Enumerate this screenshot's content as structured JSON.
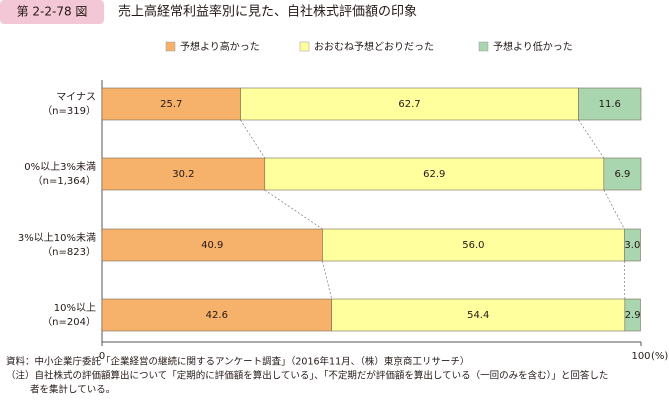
{
  "header": {
    "badge": "第 2-2-78 図",
    "title": "売上高経常利益率別に見た、自社株式評価額の印象"
  },
  "chart_data": {
    "type": "stacked-bar-horizontal",
    "categories": [
      "マイナス",
      "0%以上3%未満",
      "3%以上10%未満",
      "10%以上"
    ],
    "category_n": [
      "（n=319）",
      "（n=1,364）",
      "（n=823）",
      "（n=204）"
    ],
    "series": [
      {
        "name": "予想より高かった",
        "color": "#f6b26b",
        "values": [
          25.7,
          30.2,
          40.9,
          42.6
        ],
        "value_labels": [
          "25.7",
          "30.2",
          "40.9",
          "42.6"
        ]
      },
      {
        "name": "おおむね予想どおりだった",
        "color": "#ffff9e",
        "values": [
          62.7,
          62.9,
          56.0,
          54.4
        ],
        "value_labels": [
          "62.7",
          "62.9",
          "56.0",
          "54.4"
        ]
      },
      {
        "name": "予想より低かった",
        "color": "#a9d6ae",
        "values": [
          11.6,
          6.9,
          3.0,
          2.9
        ],
        "value_labels": [
          "11.6",
          "6.9",
          "3.0",
          "2.9"
        ]
      }
    ],
    "xlim": [
      0,
      100
    ],
    "xticks": [
      0,
      100
    ],
    "x_unit": "(%)",
    "legend": "top"
  },
  "notes": [
    "資料：中小企業庁委託「企業経営の継続に関するアンケート調査」（2016年11月、（株）東京商工リサーチ）",
    "（注）自社株式の評価額算出について「定期的に評価額を算出している」、「不定期だが評価額を算出している（一回のみを含む）」と回答した",
    "者を集計している。"
  ]
}
